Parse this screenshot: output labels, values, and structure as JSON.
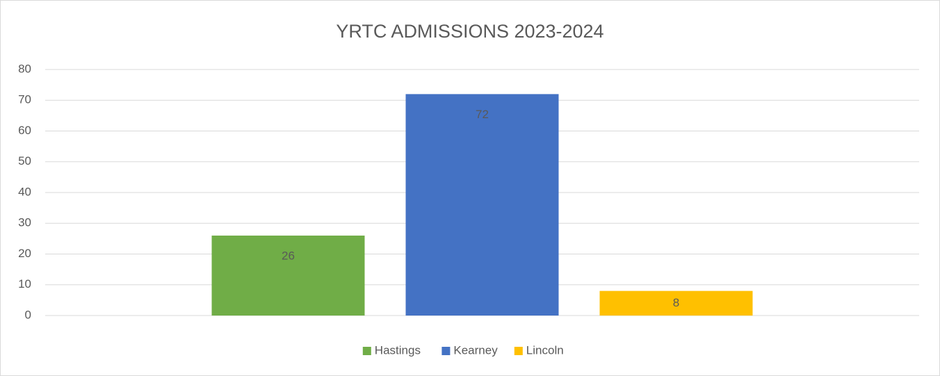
{
  "chart_data": {
    "type": "bar",
    "title": "YRTC ADMISSIONS 2023-2024",
    "categories": [
      null
    ],
    "series": [
      {
        "name": "Hastings",
        "color": "#70ad47",
        "values": [
          26
        ]
      },
      {
        "name": "Kearney",
        "color": "#4472c4",
        "values": [
          72
        ]
      },
      {
        "name": "Lincoln",
        "color": "#ffc000",
        "values": [
          8
        ]
      }
    ],
    "ylim": [
      0,
      80
    ],
    "yticks": [
      0,
      10,
      20,
      30,
      40,
      50,
      60,
      70,
      80
    ],
    "grid": true,
    "legend": "bottom"
  }
}
